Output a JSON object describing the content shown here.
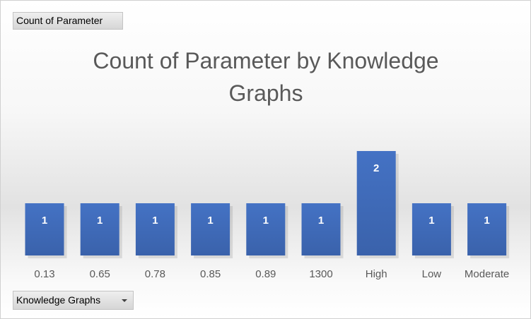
{
  "value_field_button": {
    "label": "Count of Parameter"
  },
  "axis_field_button": {
    "label": "Knowledge Graphs"
  },
  "colors": {
    "bar": "#4472c4",
    "label_text": "#ffffff",
    "tick_text": "#595959",
    "title_text": "#595959"
  },
  "chart_data": {
    "type": "bar",
    "title": "Count of Parameter by Knowledge Graphs",
    "xlabel": "",
    "ylabel": "",
    "categories": [
      "0.13",
      "0.65",
      "0.78",
      "0.85",
      "0.89",
      "1300",
      "High",
      "Low",
      "Moderate"
    ],
    "values": [
      1,
      1,
      1,
      1,
      1,
      1,
      2,
      1,
      1
    ],
    "ylim": [
      0,
      2
    ],
    "data_labels": true,
    "grid": false,
    "legend": false
  }
}
